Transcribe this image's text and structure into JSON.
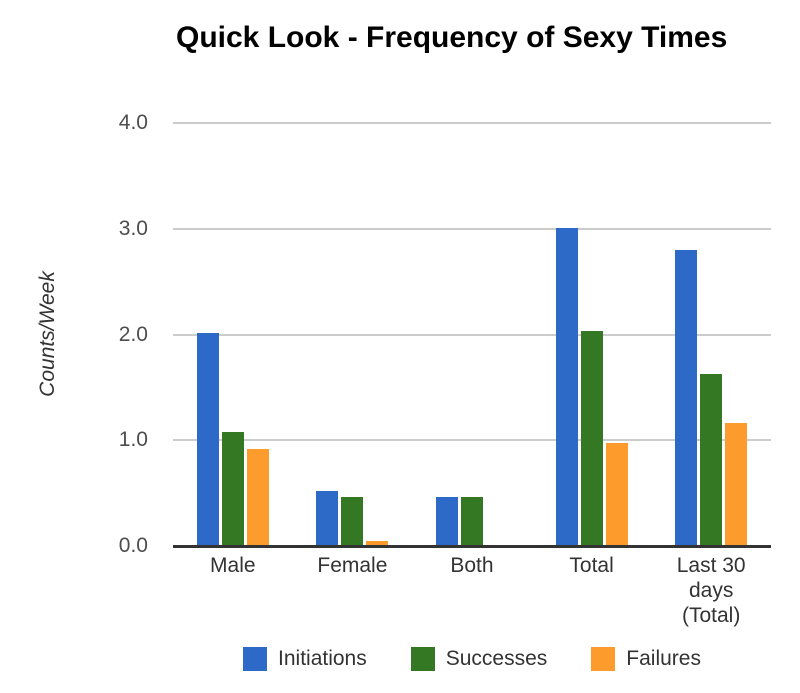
{
  "chart_data": {
    "type": "bar",
    "title": "Quick Look - Frequency of Sexy Times",
    "ylabel": "Counts/Week",
    "xlabel": "",
    "ylim": [
      0,
      4
    ],
    "yticks": [
      0,
      1,
      2,
      3,
      4
    ],
    "ytick_labels": [
      "0.0",
      "1.0",
      "2.0",
      "3.0",
      "4.0"
    ],
    "grid": true,
    "legend_position": "bottom",
    "categories": [
      "Male",
      "Female",
      "Both",
      "Total",
      "Last 30 days (Total)"
    ],
    "series": [
      {
        "name": "Initiations",
        "color": "#2d6ac8",
        "values": [
          2.01,
          0.52,
          0.46,
          3.01,
          2.8
        ]
      },
      {
        "name": "Successes",
        "color": "#347823",
        "values": [
          1.08,
          0.46,
          0.46,
          2.03,
          1.63
        ]
      },
      {
        "name": "Failures",
        "color": "#fd9b2d",
        "values": [
          0.92,
          0.05,
          0.0,
          0.97,
          1.16
        ]
      }
    ],
    "colors": {
      "title": "#000000",
      "gridline": "#cccccc",
      "axis_line": "#333333",
      "y_tick_label": "#4d4d4d",
      "y_axis_title": "#333333",
      "category_label": "#333333",
      "legend_label": "#333333",
      "background": "#ffffff"
    }
  }
}
